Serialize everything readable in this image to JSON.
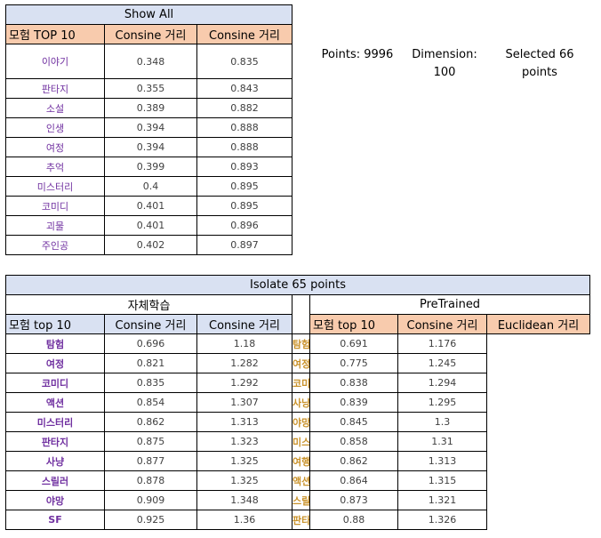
{
  "table1": {
    "title": "Show All",
    "headers": [
      "모험 TOP 10",
      "Consine 거리",
      "Consine 거리"
    ],
    "rows": [
      {
        "word": "이야기",
        "a": "0.348",
        "b": "0.835"
      },
      {
        "word": "판타지",
        "a": "0.355",
        "b": "0.843"
      },
      {
        "word": "소설",
        "a": "0.389",
        "b": "0.882"
      },
      {
        "word": "인생",
        "a": "0.394",
        "b": "0.888"
      },
      {
        "word": "여정",
        "a": "0.394",
        "b": "0.888"
      },
      {
        "word": "추억",
        "a": "0.399",
        "b": "0.893"
      },
      {
        "word": "미스터리",
        "a": "0.4",
        "b": "0.895"
      },
      {
        "word": "코미디",
        "a": "0.401",
        "b": "0.895"
      },
      {
        "word": "괴물",
        "a": "0.401",
        "b": "0.896"
      },
      {
        "word": "주인공",
        "a": "0.402",
        "b": "0.897"
      }
    ]
  },
  "info": {
    "points": "Points: 9996",
    "dimension_line1": "Dimension:",
    "dimension_line2": "100",
    "selected_line1": "Selected 66",
    "selected_line2": "points"
  },
  "table2": {
    "title": "Isolate 65 points",
    "left": {
      "subtitle": "자체학습",
      "headers": [
        "모험 top 10",
        "Consine 거리",
        "Consine 거리"
      ],
      "rows": [
        {
          "word": "탐험",
          "a": "0.696",
          "b": "1.18"
        },
        {
          "word": "여정",
          "a": "0.821",
          "b": "1.282"
        },
        {
          "word": "코미디",
          "a": "0.835",
          "b": "1.292"
        },
        {
          "word": "액션",
          "a": "0.854",
          "b": "1.307"
        },
        {
          "word": "미스터리",
          "a": "0.862",
          "b": "1.313"
        },
        {
          "word": "판타지",
          "a": "0.875",
          "b": "1.323"
        },
        {
          "word": "사냥",
          "a": "0.877",
          "b": "1.325"
        },
        {
          "word": "스릴러",
          "a": "0.878",
          "b": "1.325"
        },
        {
          "word": "야망",
          "a": "0.909",
          "b": "1.348"
        },
        {
          "word": "SF",
          "a": "0.925",
          "b": "1.36"
        }
      ]
    },
    "right": {
      "subtitle": "PreTrained",
      "headers": [
        "모험  top 10",
        "Consine 거리",
        "Euclidean 거리"
      ],
      "rows": [
        {
          "word": "탐험",
          "a": "0.691",
          "b": "1.176"
        },
        {
          "word": "여정",
          "a": "0.775",
          "b": "1.245"
        },
        {
          "word": "코미디",
          "a": "0.838",
          "b": "1.294"
        },
        {
          "word": "사냥",
          "a": "0.839",
          "b": "1.295"
        },
        {
          "word": "야망",
          "a": "0.845",
          "b": "1.3"
        },
        {
          "word": "미스터리",
          "a": "0.858",
          "b": "1.31"
        },
        {
          "word": "여행",
          "a": "0.862",
          "b": "1.313"
        },
        {
          "word": "액션",
          "a": "0.864",
          "b": "1.315"
        },
        {
          "word": "스릴러",
          "a": "0.873",
          "b": "1.321"
        },
        {
          "word": "판타지",
          "a": "0.88",
          "b": "1.326"
        }
      ]
    }
  },
  "colors": {
    "header_blue": "#d9e1f2",
    "header_orange": "#f8cbad",
    "word_purple": "#7030a0",
    "word_orange": "#c9922a"
  }
}
